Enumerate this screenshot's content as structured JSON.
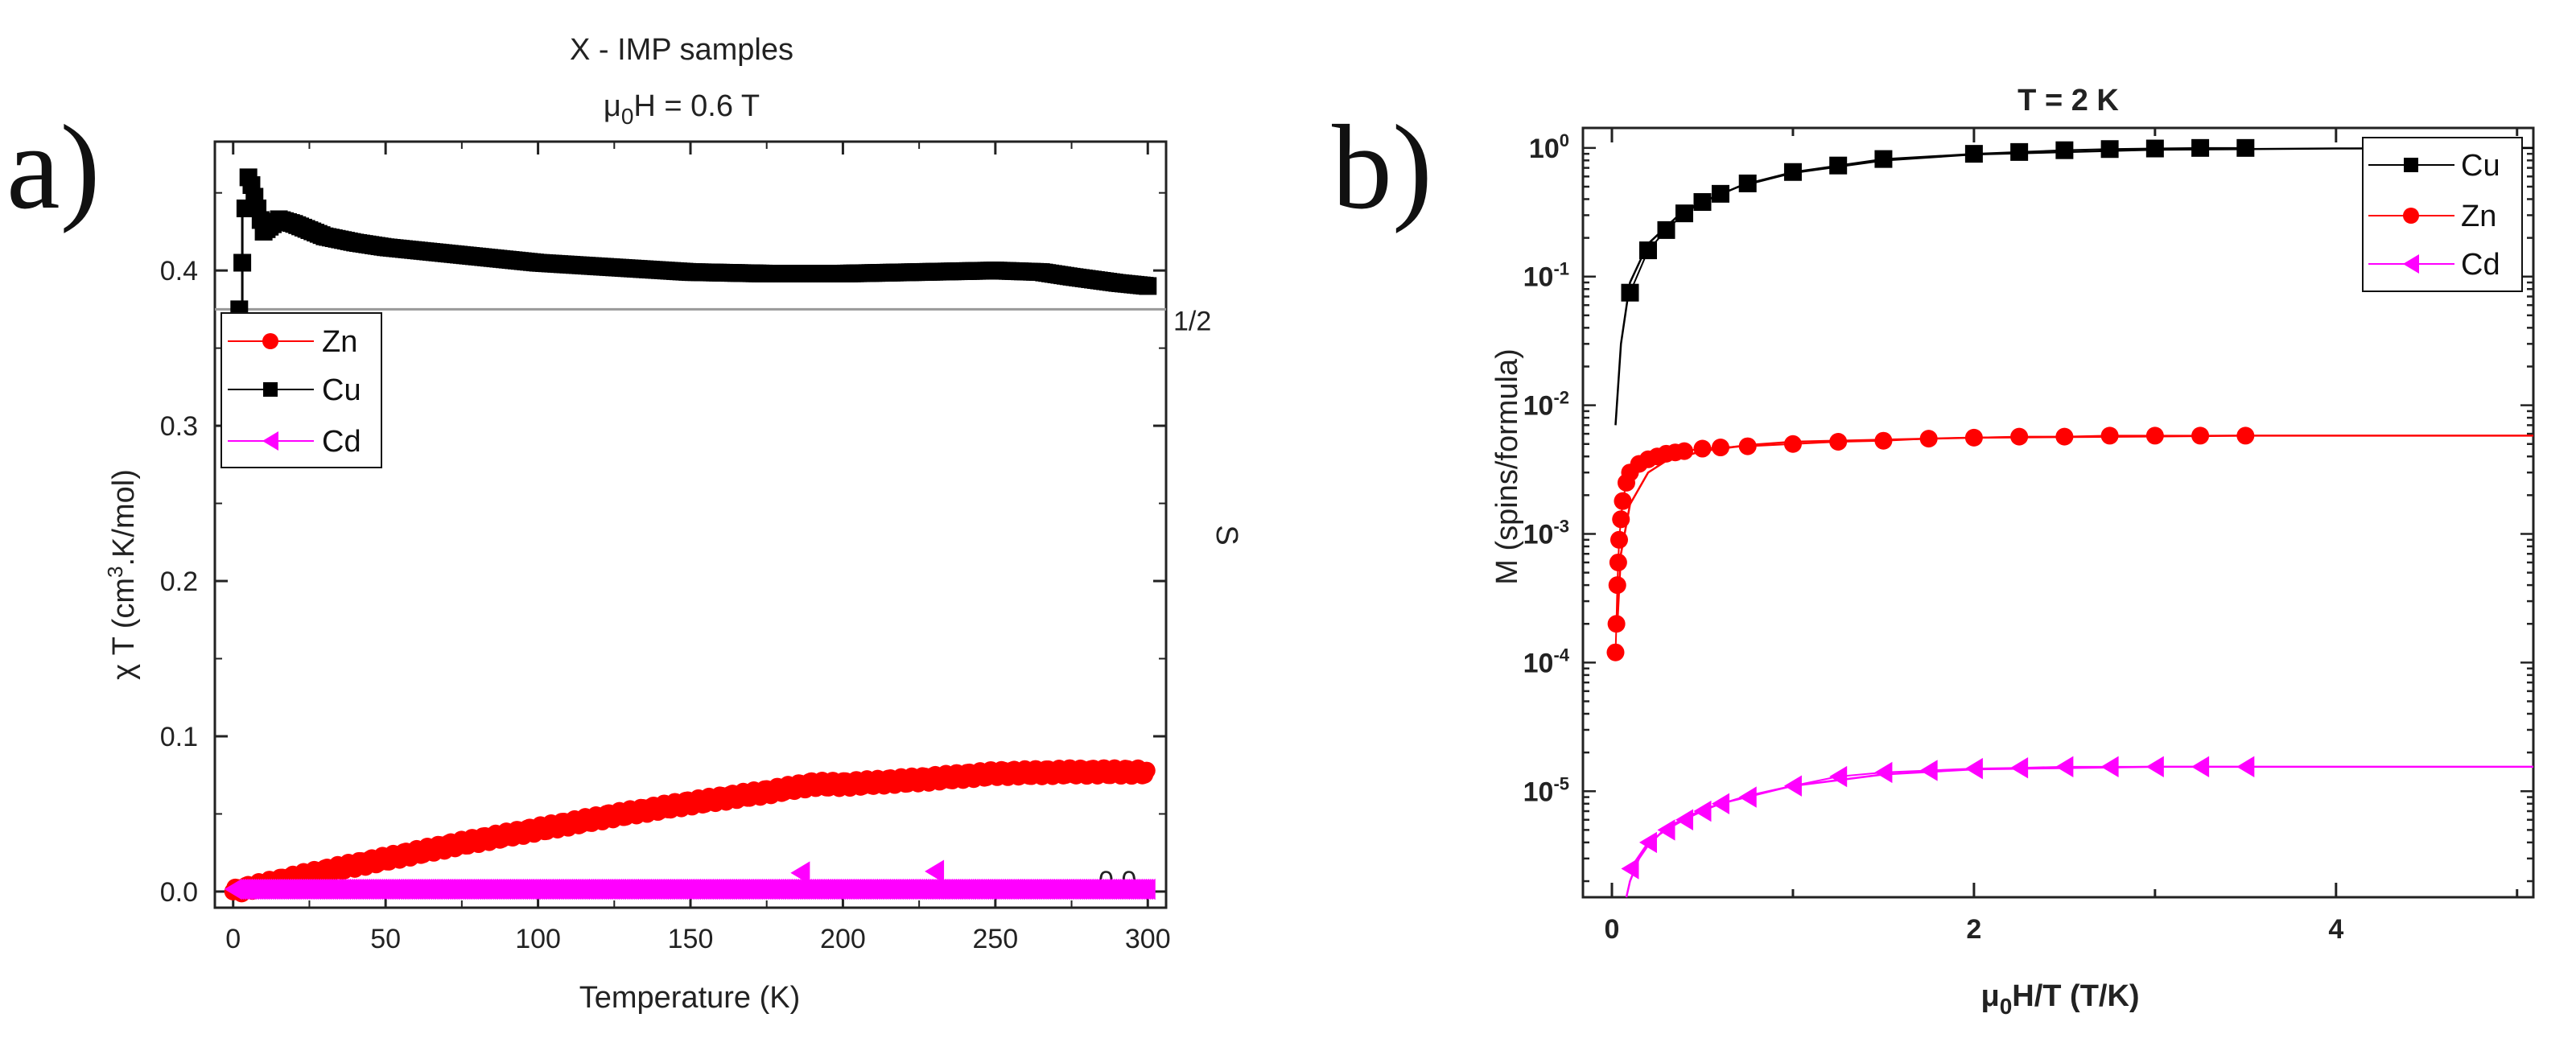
{
  "panel_labels": {
    "a": "a)",
    "b": "b)"
  },
  "chart_data": [
    {
      "type": "scatter",
      "id": "a",
      "title": "X - IMP samples",
      "subtitle": {
        "prefix": "μ",
        "sub": "0",
        "rest": "H = 0.6 T"
      },
      "xlabel": "Temperature (K)",
      "ylabel": {
        "prefix": "χ T (cm",
        "sup": "3",
        "rest": ".K/mol)"
      },
      "y2label": "S",
      "xlim": [
        -6,
        306
      ],
      "ylim": [
        -0.0104,
        0.483
      ],
      "xticks": [
        0,
        50,
        100,
        150,
        200,
        250,
        300
      ],
      "xtick_labels": [
        "0",
        "50",
        "100",
        "150",
        "200",
        "250",
        "300"
      ],
      "yticks": [
        0.0,
        0.1,
        0.2,
        0.3,
        0.4
      ],
      "ytick_labels": [
        "0.0",
        "0.1",
        "0.2",
        "0.3",
        "0.4"
      ],
      "reference_lines": [
        {
          "y": 0.375,
          "label": "1/2"
        },
        {
          "y": 0.0,
          "label": "0.0"
        }
      ],
      "legend": {
        "position": "upper-left",
        "entries": [
          "Zn",
          "Cu",
          "Cd"
        ]
      },
      "series": [
        {
          "name": "Cu",
          "color": "#000000",
          "marker": "square",
          "x": [
            2,
            3,
            4,
            5,
            6,
            8,
            10,
            15,
            20,
            30,
            40,
            50,
            75,
            100,
            125,
            150,
            175,
            200,
            225,
            250,
            265,
            275,
            290,
            300
          ],
          "y": [
            0.375,
            0.405,
            0.44,
            0.46,
            0.455,
            0.44,
            0.425,
            0.433,
            0.43,
            0.422,
            0.418,
            0.415,
            0.41,
            0.405,
            0.402,
            0.399,
            0.398,
            0.398,
            0.399,
            0.4,
            0.399,
            0.396,
            0.392,
            0.39
          ]
        },
        {
          "name": "Zn",
          "color": "#ff0000",
          "marker": "circle",
          "x": [
            0,
            25,
            50,
            75,
            100,
            125,
            150,
            175,
            190,
            200,
            225,
            250,
            275,
            300
          ],
          "y": [
            0.0,
            0.011,
            0.021,
            0.031,
            0.04,
            0.049,
            0.057,
            0.064,
            0.069,
            0.069,
            0.072,
            0.076,
            0.077,
            0.077
          ]
        },
        {
          "name": "Cd",
          "color": "#ff00ff",
          "marker": "triangle-left",
          "x": [
            0,
            100,
            185,
            186,
            200,
            230,
            231,
            300
          ],
          "y": [
            0.002,
            0.002,
            0.002,
            0.012,
            0.002,
            0.013,
            0.002,
            0.002
          ]
        }
      ]
    },
    {
      "type": "line",
      "id": "b",
      "title": "T = 2 K",
      "xlabel": {
        "prefix": "μ",
        "sub": "0",
        "rest": "H/T (T/K)"
      },
      "ylabel": "M (spins/formula)",
      "xlim": [
        -0.16,
        5.09
      ],
      "ylim": [
        1.5e-06,
        1.43
      ],
      "yscale": "log",
      "xticks": [
        0,
        2,
        4
      ],
      "xtick_labels": [
        "0",
        "2",
        "4"
      ],
      "yticks": [
        1,
        0.1,
        0.01,
        0.001,
        0.0001,
        1e-05
      ],
      "ytick_labels": [
        {
          "base": "10",
          "exp": "0"
        },
        {
          "base": "10",
          "exp": "-1"
        },
        {
          "base": "10",
          "exp": "-2"
        },
        {
          "base": "10",
          "exp": "-3"
        },
        {
          "base": "10",
          "exp": "-4"
        },
        {
          "base": "10",
          "exp": "-5"
        }
      ],
      "legend": {
        "position": "top-right",
        "entries": [
          "Cu",
          "Zn",
          "Cd"
        ]
      },
      "series": [
        {
          "name": "Cu",
          "color": "#000000",
          "marker": "square",
          "x": [
            0.1,
            0.2,
            0.3,
            0.4,
            0.5,
            0.6,
            0.75,
            1.0,
            1.25,
            1.5,
            2.0,
            2.25,
            2.5,
            2.75,
            3.0,
            3.25,
            3.5
          ],
          "y": [
            0.075,
            0.16,
            0.23,
            0.31,
            0.38,
            0.44,
            0.53,
            0.65,
            0.73,
            0.82,
            0.9,
            0.93,
            0.96,
            0.98,
            0.99,
            1.0,
            1.0
          ],
          "fit_x": [
            0.02,
            0.05,
            0.1,
            0.2,
            0.4,
            0.7,
            1.0,
            1.5,
            2.0,
            3.0,
            4.0,
            5.09
          ],
          "fit_y": [
            0.007,
            0.03,
            0.09,
            0.18,
            0.33,
            0.5,
            0.64,
            0.8,
            0.89,
            0.97,
            0.99,
            1.0
          ]
        },
        {
          "name": "Zn",
          "color": "#ff0000",
          "marker": "circle",
          "x": [
            0.02,
            0.025,
            0.03,
            0.035,
            0.04,
            0.05,
            0.06,
            0.08,
            0.1,
            0.15,
            0.2,
            0.25,
            0.3,
            0.35,
            0.4,
            0.5,
            0.6,
            0.75,
            1.0,
            1.25,
            1.5,
            1.75,
            2.0,
            2.25,
            2.5,
            2.75,
            3.0,
            3.25,
            3.5
          ],
          "y": [
            0.00012,
            0.0002,
            0.0004,
            0.0006,
            0.0009,
            0.0013,
            0.0018,
            0.0025,
            0.003,
            0.0035,
            0.0038,
            0.004,
            0.0042,
            0.0043,
            0.0044,
            0.0046,
            0.0047,
            0.0048,
            0.005,
            0.0052,
            0.0053,
            0.0055,
            0.0056,
            0.0057,
            0.0057,
            0.0058,
            0.0058,
            0.0058,
            0.0058
          ],
          "fit_x": [
            0.03,
            0.05,
            0.1,
            0.2,
            0.3,
            0.5,
            0.75,
            1.0,
            2.0,
            3.5,
            5.09
          ],
          "fit_y": [
            0.0002,
            0.0007,
            0.0017,
            0.003,
            0.0037,
            0.0044,
            0.0049,
            0.0052,
            0.0056,
            0.0058,
            0.0058
          ]
        },
        {
          "name": "Cd",
          "color": "#ff00ff",
          "marker": "triangle-left",
          "x": [
            0.1,
            0.2,
            0.3,
            0.4,
            0.5,
            0.6,
            0.75,
            1.0,
            1.25,
            1.5,
            1.75,
            2.0,
            2.25,
            2.5,
            2.75,
            3.0,
            3.25,
            3.5
          ],
          "y": [
            2.5e-06,
            4e-06,
            5e-06,
            6e-06,
            7e-06,
            8e-06,
            9e-06,
            1.1e-05,
            1.3e-05,
            1.4e-05,
            1.45e-05,
            1.5e-05,
            1.52e-05,
            1.55e-05,
            1.55e-05,
            1.55e-05,
            1.55e-05,
            1.55e-05
          ],
          "fit_x": [
            0.08,
            0.1,
            0.15,
            0.2,
            0.3,
            0.5,
            0.75,
            1.0,
            1.5,
            2.0,
            3.0,
            5.09
          ],
          "fit_y": [
            1.5e-06,
            2e-06,
            3e-06,
            3.8e-06,
            5.2e-06,
            7.2e-06,
            9.2e-06,
            1.1e-05,
            1.35e-05,
            1.48e-05,
            1.55e-05,
            1.55e-05
          ]
        }
      ]
    }
  ]
}
